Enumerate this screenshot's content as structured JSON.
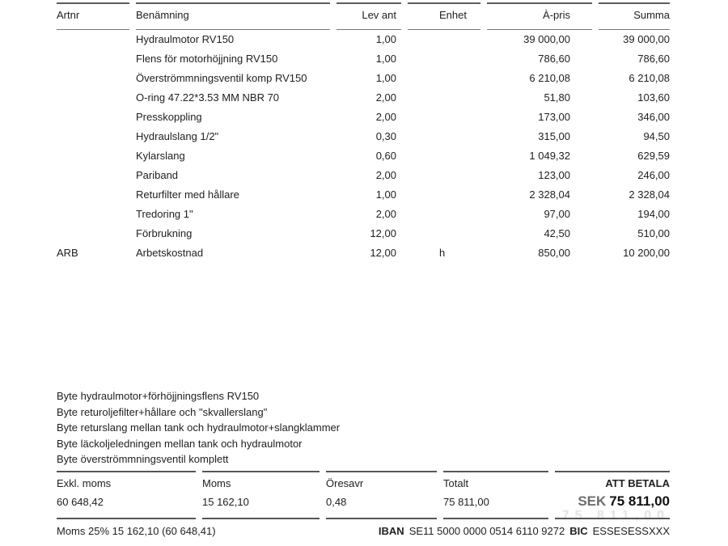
{
  "table": {
    "headers": {
      "artnr": "Artnr",
      "name": "Benämning",
      "qty": "Lev ant",
      "unit": "Enhet",
      "price": "À-pris",
      "sum": "Summa"
    },
    "rows": [
      [
        "",
        "Hydraulmotor RV150",
        "1,00",
        "",
        "39 000,00",
        "39 000,00"
      ],
      [
        "",
        "Flens för motorhöjjning RV150",
        "1,00",
        "",
        "786,60",
        "786,60"
      ],
      [
        "",
        "Överströmmningsventil komp RV150",
        "1,00",
        "",
        "6 210,08",
        "6 210,08"
      ],
      [
        "",
        "O-ring 47.22*3.53 MM NBR 70",
        "2,00",
        "",
        "51,80",
        "103,60"
      ],
      [
        "",
        "Presskoppling",
        "2,00",
        "",
        "173,00",
        "346,00"
      ],
      [
        "",
        "Hydraulslang 1/2\"",
        "0,30",
        "",
        "315,00",
        "94,50"
      ],
      [
        "",
        "Kylarslang",
        "0,60",
        "",
        "1 049,32",
        "629,59"
      ],
      [
        "",
        "Pariband",
        "2,00",
        "",
        "123,00",
        "246,00"
      ],
      [
        "",
        "Returfilter med hållare",
        "1,00",
        "",
        "2 328,04",
        "2 328,04"
      ],
      [
        "",
        "Tredoring 1\"",
        "2,00",
        "",
        "97,00",
        "194,00"
      ],
      [
        "",
        "Förbrukning",
        "12,00",
        "",
        "42,50",
        "510,00"
      ],
      [
        "ARB",
        "Arbetskostnad",
        "12,00",
        "h",
        "850,00",
        "10 200,00"
      ]
    ]
  },
  "notes": [
    "Byte hydraulmotor+förhöjjningsflens RV150",
    "Byte returoljefilter+hållare och \"skvallerslang\"",
    "Byte returslang mellan tank och hydraulmotor+slangklammer",
    "Byte läckoljeledningen mellan tank och hydraulmotor",
    "Byte överströmmningsventil komplett"
  ],
  "summary": {
    "items": [
      {
        "label": "Exkl. moms",
        "value": "60 648,42"
      },
      {
        "label": "Moms",
        "value": "15 162,10"
      },
      {
        "label": "Öresavr",
        "value": "0,48"
      },
      {
        "label": "Totalt",
        "value": "75 811,00"
      }
    ],
    "att_betala": {
      "label": "ATT BETALA",
      "currency": "SEK",
      "amount": "75 811,00"
    }
  },
  "footer": {
    "vat_note": "Moms 25% 15 162,10 (60 648,41)",
    "iban_label": "IBAN",
    "iban": "SE11 5000 0000 0514 6110 9272",
    "bic_label": "BIC",
    "bic": "ESSESESSXXX"
  },
  "watermark": "75 811,00",
  "colors": {
    "text": "#212121",
    "rule": "#5d5d5d"
  }
}
